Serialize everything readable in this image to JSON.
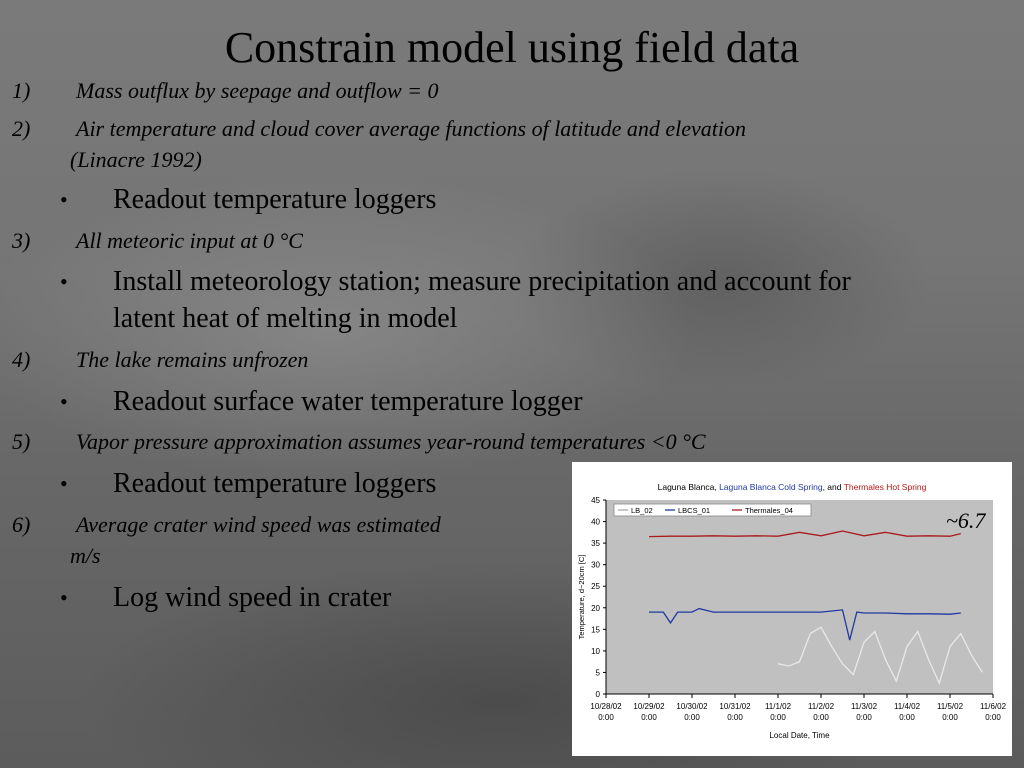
{
  "slide": {
    "title": "Constrain model using field data",
    "items": [
      {
        "num": "1)",
        "text": "Mass outflux by seepage and outflow = 0",
        "cont": ""
      },
      {
        "num": "2)",
        "text": "Air temperature and cloud cover average functions of latitude and elevation",
        "cont": "(Linacre 1992)"
      },
      {
        "bullet": "Readout temperature loggers"
      },
      {
        "num": "3)",
        "text": "All meteoric input at 0 °C",
        "cont": ""
      },
      {
        "bullet": "Install meteorology station; measure precipitation and account for",
        "bullet_cont": "latent heat of melting in model"
      },
      {
        "num": "4)",
        "text": "The lake remains unfrozen",
        "cont": ""
      },
      {
        "bullet": "Readout surface water temperature logger"
      },
      {
        "num": "5)",
        "text": "Vapor pressure approximation assumes year-round temperatures <0 °C",
        "cont": ""
      },
      {
        "bullet": "Readout temperature loggers"
      },
      {
        "num": "6)",
        "text": "Average crater wind speed was estimated",
        "cont": "m/s"
      },
      {
        "bullet": "Log wind speed in crater"
      }
    ],
    "annotation": "~6.7"
  },
  "chart_data": {
    "type": "line",
    "title_parts": [
      {
        "text": "Laguna Blanca",
        "color": "#000000"
      },
      {
        "text": ", ",
        "color": "#000000"
      },
      {
        "text": "Laguna Blanca Cold Spring",
        "color": "#1f3aa0"
      },
      {
        "text": ", and ",
        "color": "#000000"
      },
      {
        "text": "Thermales Hot Spring",
        "color": "#b01818"
      }
    ],
    "xlabel": "Local Date, Time",
    "ylabel": "Temperature, d~20cm [C]",
    "ylim": [
      0,
      45
    ],
    "yticks": [
      0,
      5,
      10,
      15,
      20,
      25,
      30,
      35,
      40,
      45
    ],
    "xlim": [
      "10/28/02 0:00",
      "11/6/02 0:00"
    ],
    "xticks": [
      {
        "date": "10/28/02",
        "time": "0:00"
      },
      {
        "date": "10/29/02",
        "time": "0:00"
      },
      {
        "date": "10/30/02",
        "time": "0:00"
      },
      {
        "date": "10/31/02",
        "time": "0:00"
      },
      {
        "date": "11/1/02",
        "time": "0:00"
      },
      {
        "date": "11/2/02",
        "time": "0:00"
      },
      {
        "date": "11/3/02",
        "time": "0:00"
      },
      {
        "date": "11/4/02",
        "time": "0:00"
      },
      {
        "date": "11/5/02",
        "time": "0:00"
      },
      {
        "date": "11/6/02",
        "time": "0:00"
      }
    ],
    "grid": false,
    "legend_position": "top-left",
    "series": [
      {
        "name": "LB_02",
        "color": "#e8e8e8",
        "points": [
          [
            "11/1/02 0:00",
            7
          ],
          [
            "11/1/02 6:00",
            6.5
          ],
          [
            "11/1/02 12:00",
            7.5
          ],
          [
            "11/1/02 18:00",
            14
          ],
          [
            "11/2/02 0:00",
            15.5
          ],
          [
            "11/2/02 6:00",
            11
          ],
          [
            "11/2/02 12:00",
            7
          ],
          [
            "11/2/02 18:00",
            4.5
          ],
          [
            "11/3/02 0:00",
            12
          ],
          [
            "11/3/02 6:00",
            14.5
          ],
          [
            "11/3/02 12:00",
            8
          ],
          [
            "11/3/02 18:00",
            3
          ],
          [
            "11/4/02 0:00",
            11
          ],
          [
            "11/4/02 6:00",
            14.5
          ],
          [
            "11/4/02 12:00",
            8
          ],
          [
            "11/4/02 18:00",
            2.5
          ],
          [
            "11/5/02 0:00",
            11
          ],
          [
            "11/5/02 6:00",
            14
          ],
          [
            "11/5/02 12:00",
            9
          ],
          [
            "11/5/02 18:00",
            5
          ]
        ]
      },
      {
        "name": "LBCS_01",
        "color": "#1f3aa0",
        "points": [
          [
            "10/29/02 0:00",
            19
          ],
          [
            "10/29/02 8:00",
            19
          ],
          [
            "10/29/02 12:00",
            16.5
          ],
          [
            "10/29/02 16:00",
            19
          ],
          [
            "10/30/02 0:00",
            19
          ],
          [
            "10/30/02 4:00",
            19.8
          ],
          [
            "10/30/02 12:00",
            19
          ],
          [
            "10/31/02 0:00",
            19
          ],
          [
            "11/1/02 0:00",
            19
          ],
          [
            "11/1/02 12:00",
            19
          ],
          [
            "11/2/02 0:00",
            19
          ],
          [
            "11/2/02 12:00",
            19.5
          ],
          [
            "11/2/02 16:00",
            12.5
          ],
          [
            "11/2/02 20:00",
            19
          ],
          [
            "11/3/02 0:00",
            18.8
          ],
          [
            "11/3/02 12:00",
            18.8
          ],
          [
            "11/4/02 0:00",
            18.6
          ],
          [
            "11/4/02 12:00",
            18.6
          ],
          [
            "11/5/02 0:00",
            18.5
          ],
          [
            "11/5/02 6:00",
            18.8
          ]
        ]
      },
      {
        "name": "Thermales_04",
        "color": "#a81c1c",
        "points": [
          [
            "10/29/02 0:00",
            36.5
          ],
          [
            "10/29/02 12:00",
            36.6
          ],
          [
            "10/30/02 0:00",
            36.6
          ],
          [
            "10/30/02 12:00",
            36.7
          ],
          [
            "10/31/02 0:00",
            36.6
          ],
          [
            "10/31/02 12:00",
            36.7
          ],
          [
            "11/1/02 0:00",
            36.6
          ],
          [
            "11/1/02 12:00",
            37.5
          ],
          [
            "11/2/02 0:00",
            36.7
          ],
          [
            "11/2/02 12:00",
            37.8
          ],
          [
            "11/3/02 0:00",
            36.7
          ],
          [
            "11/3/02 12:00",
            37.5
          ],
          [
            "11/4/02 0:00",
            36.6
          ],
          [
            "11/4/02 12:00",
            36.7
          ],
          [
            "11/5/02 0:00",
            36.6
          ],
          [
            "11/5/02 6:00",
            37.2
          ]
        ]
      }
    ]
  }
}
